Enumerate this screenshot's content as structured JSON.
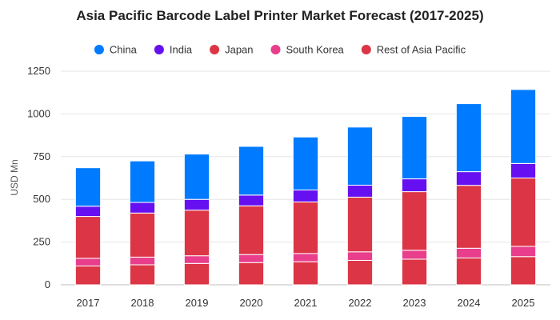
{
  "chart_data": {
    "type": "bar",
    "stacked": true,
    "title": "Asia Pacific Barcode Label Printer Market Forecast (2017-2025)",
    "xlabel": "",
    "ylabel": "USD Mn",
    "ylim": [
      0,
      1250
    ],
    "yticks": [
      0,
      250,
      500,
      750,
      1000,
      1250
    ],
    "grid": true,
    "legend_position": "top",
    "categories": [
      "2017",
      "2018",
      "2019",
      "2020",
      "2021",
      "2022",
      "2023",
      "2024",
      "2025"
    ],
    "series": [
      {
        "name": "Rest of Asia Pacific",
        "color": "#dc3545",
        "values": [
          110,
          117,
          125,
          130,
          135,
          143,
          150,
          157,
          165
        ]
      },
      {
        "name": "South Korea",
        "color": "#e83e8c",
        "values": [
          45,
          45,
          45,
          47,
          48,
          50,
          52,
          57,
          60
        ]
      },
      {
        "name": "Japan",
        "color": "#dc3545",
        "values": [
          245,
          258,
          267,
          285,
          302,
          320,
          343,
          368,
          400
        ]
      },
      {
        "name": "India",
        "color": "#6610f2",
        "values": [
          60,
          62,
          63,
          63,
          70,
          70,
          75,
          80,
          85
        ]
      },
      {
        "name": "China",
        "color": "#007bff",
        "values": [
          225,
          243,
          265,
          285,
          310,
          340,
          365,
          398,
          433
        ]
      }
    ],
    "legend": [
      {
        "name": "China",
        "color": "#007bff"
      },
      {
        "name": "India",
        "color": "#6610f2"
      },
      {
        "name": "Japan",
        "color": "#dc3545"
      },
      {
        "name": "South Korea",
        "color": "#e83e8c"
      },
      {
        "name": "Rest of Asia Pacific",
        "color": "#dc3545"
      }
    ]
  }
}
